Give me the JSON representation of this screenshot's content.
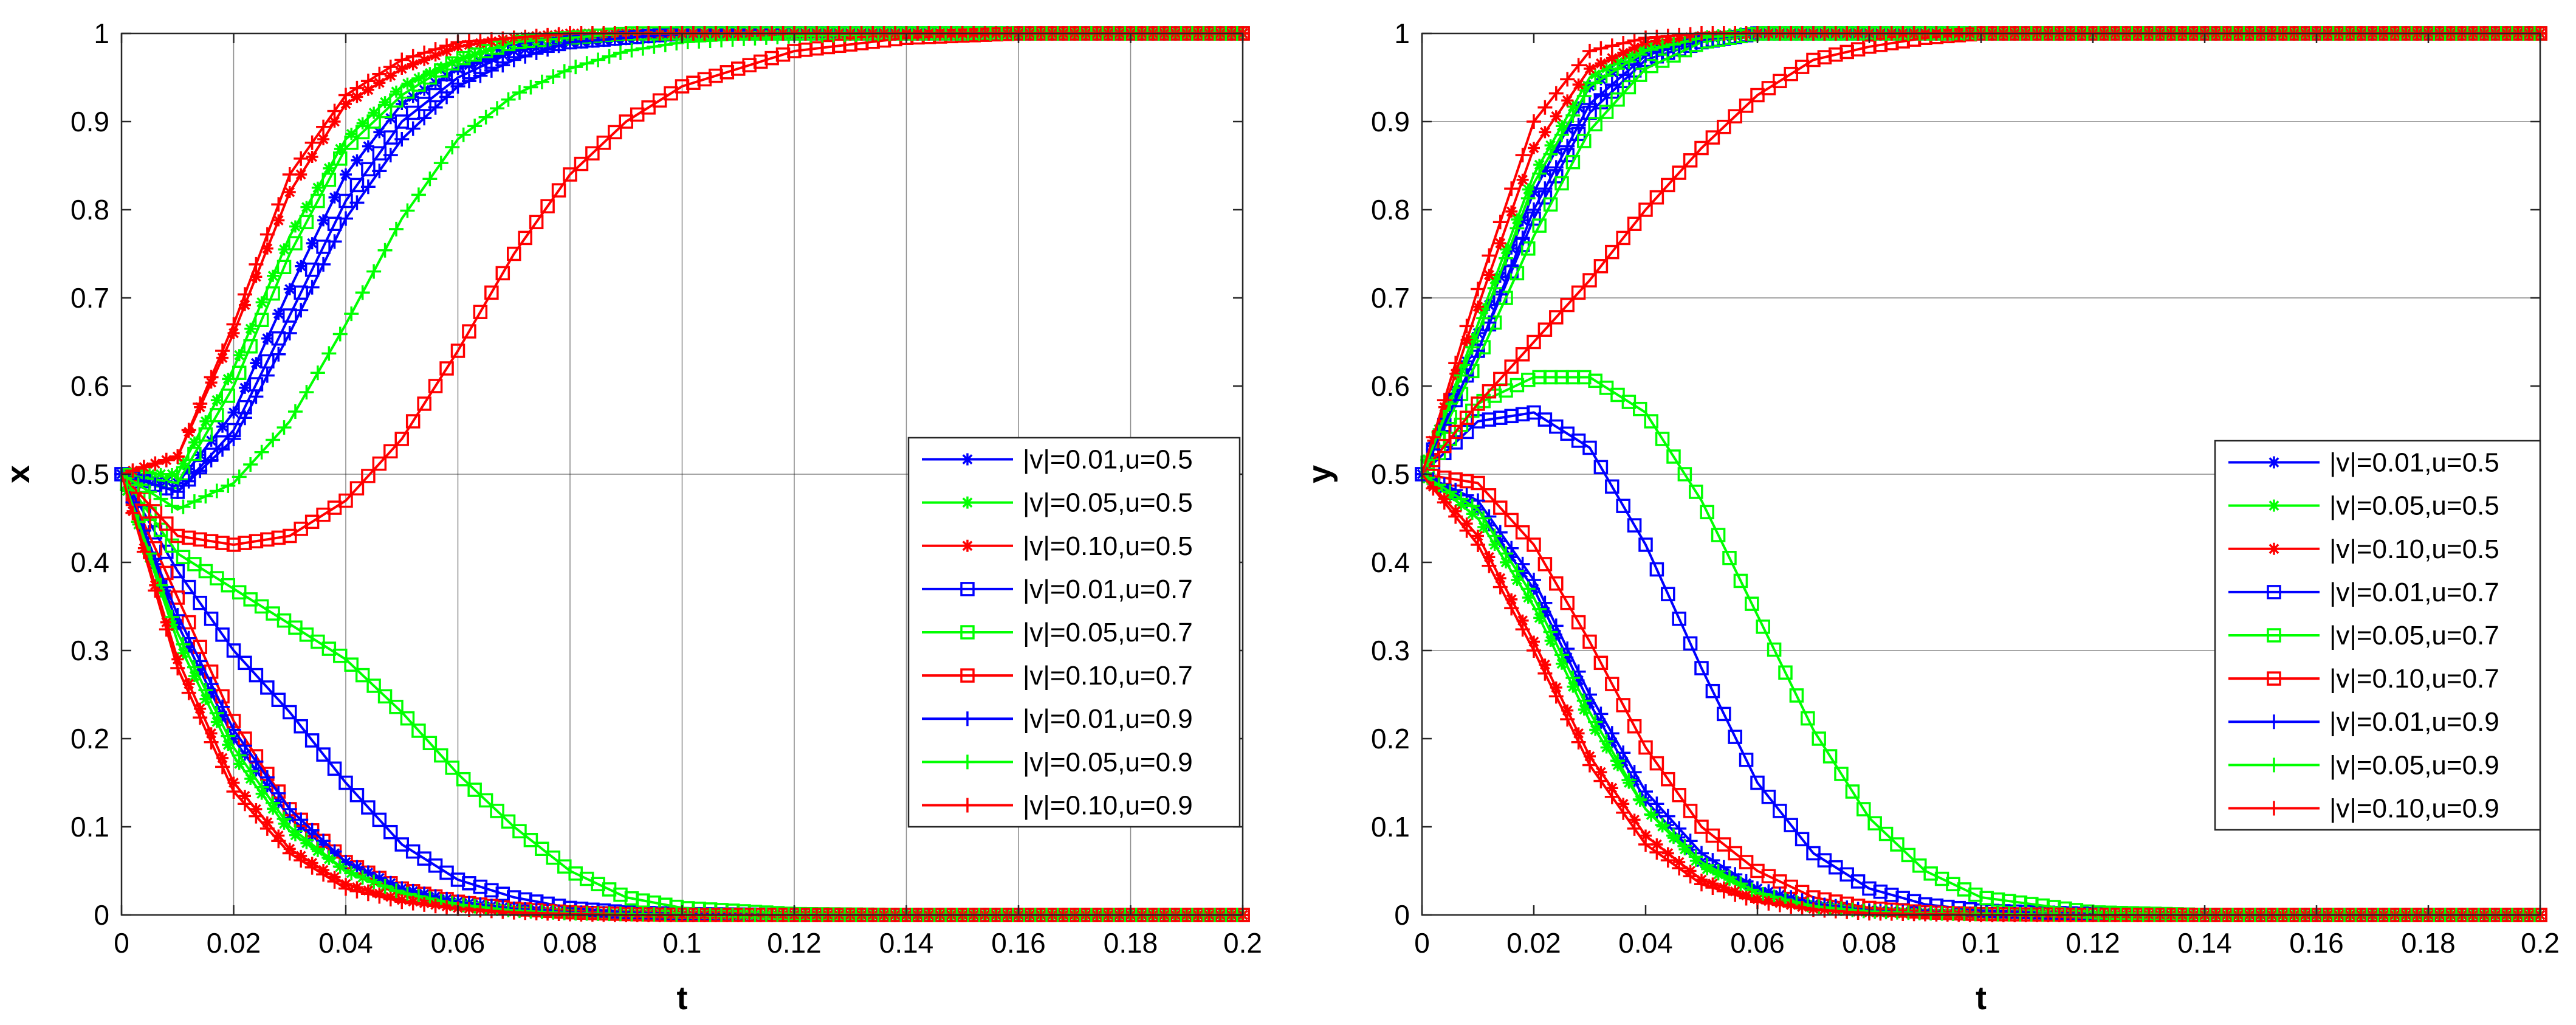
{
  "chart_data": [
    {
      "type": "line",
      "panel": "left",
      "title": "",
      "xlabel": "t",
      "ylabel": "x",
      "xlim": [
        0,
        0.2
      ],
      "ylim": [
        0,
        1
      ],
      "xticks": [
        0,
        0.02,
        0.04,
        0.06,
        0.08,
        0.1,
        0.12,
        0.14,
        0.16,
        0.18,
        0.2
      ],
      "xtick_labels": [
        "0",
        "0.02",
        "0.04",
        "0.06",
        "0.08",
        "0.1",
        "0.12",
        "0.14",
        "0.16",
        "0.18",
        "0.2"
      ],
      "yticks": [
        0,
        0.1,
        0.2,
        0.3,
        0.4,
        0.5,
        0.6,
        0.7,
        0.8,
        0.9,
        1
      ],
      "ytick_labels": [
        "0",
        "0.1",
        "0.2",
        "0.3",
        "0.4",
        "0.5",
        "0.6",
        "0.7",
        "0.8",
        "0.9",
        "1"
      ],
      "grid": {
        "x": true,
        "y": [
          0.5,
          1.0
        ]
      },
      "legend_position": "middle-right",
      "x": [
        0,
        0.01,
        0.02,
        0.03,
        0.04,
        0.05,
        0.06,
        0.07,
        0.08,
        0.09,
        0.1,
        0.12,
        0.14,
        0.16,
        0.18,
        0.2
      ],
      "series": [
        {
          "name": "|v|=0.01,u=0.5",
          "color": "#0000ff",
          "marker": "asterisk",
          "upper": [
            0.5,
            0.49,
            0.57,
            0.71,
            0.84,
            0.92,
            0.96,
            0.98,
            0.99,
            0.995,
            1,
            1,
            1,
            1,
            1,
            1
          ],
          "lower": [
            0.5,
            0.33,
            0.2,
            0.11,
            0.06,
            0.03,
            0.015,
            0.007,
            0.003,
            0.001,
            0,
            0,
            0,
            0,
            0,
            0
          ]
        },
        {
          "name": "|v|=0.05,u=0.5",
          "color": "#00ff00",
          "marker": "asterisk",
          "upper": [
            0.5,
            0.5,
            0.62,
            0.77,
            0.88,
            0.94,
            0.97,
            0.99,
            0.995,
            1,
            1,
            1,
            1,
            1,
            1,
            1
          ],
          "lower": [
            0.5,
            0.31,
            0.18,
            0.095,
            0.05,
            0.025,
            0.012,
            0.005,
            0.002,
            0.001,
            0,
            0,
            0,
            0,
            0,
            0
          ]
        },
        {
          "name": "|v|=0.10,u=0.5",
          "color": "#ff0000",
          "marker": "asterisk",
          "upper": [
            0.5,
            0.52,
            0.66,
            0.82,
            0.92,
            0.96,
            0.985,
            0.995,
            1,
            1,
            1,
            1,
            1,
            1,
            1,
            1
          ],
          "lower": [
            0.5,
            0.29,
            0.15,
            0.075,
            0.035,
            0.017,
            0.008,
            0.004,
            0.002,
            0,
            0,
            0,
            0,
            0,
            0,
            0
          ]
        },
        {
          "name": "|v|=0.01,u=0.7",
          "color": "#0000ff",
          "marker": "square",
          "upper": [
            0.5,
            0.48,
            0.55,
            0.68,
            0.81,
            0.9,
            0.95,
            0.98,
            0.99,
            0.995,
            1,
            1,
            1,
            1,
            1,
            1
          ],
          "lower": [
            0.5,
            0.39,
            0.3,
            0.23,
            0.15,
            0.08,
            0.04,
            0.02,
            0.008,
            0.003,
            0.001,
            0,
            0,
            0,
            0,
            0
          ]
        },
        {
          "name": "|v|=0.05,u=0.7",
          "color": "#00ff00",
          "marker": "square",
          "upper": [
            0.5,
            0.49,
            0.6,
            0.75,
            0.87,
            0.93,
            0.97,
            0.99,
            0.995,
            1,
            1,
            1,
            1,
            1,
            1,
            1
          ],
          "lower": [
            0.5,
            0.41,
            0.37,
            0.33,
            0.29,
            0.23,
            0.16,
            0.1,
            0.05,
            0.02,
            0.008,
            0.001,
            0,
            0,
            0,
            0
          ]
        },
        {
          "name": "|v|=0.10,u=0.7",
          "color": "#ff0000",
          "marker": "square",
          "upper": [
            0.5,
            0.43,
            0.42,
            0.43,
            0.47,
            0.54,
            0.64,
            0.75,
            0.84,
            0.9,
            0.94,
            0.98,
            0.995,
            1,
            1,
            1
          ],
          "lower": [
            0.5,
            0.36,
            0.22,
            0.12,
            0.06,
            0.03,
            0.015,
            0.007,
            0.003,
            0.001,
            0,
            0,
            0,
            0,
            0,
            0
          ]
        },
        {
          "name": "|v|=0.01,u=0.9",
          "color": "#0000ff",
          "marker": "plus",
          "upper": [
            0.5,
            0.48,
            0.54,
            0.66,
            0.79,
            0.88,
            0.94,
            0.97,
            0.99,
            0.995,
            1,
            1,
            1,
            1,
            1,
            1
          ],
          "lower": [
            0.5,
            0.34,
            0.21,
            0.12,
            0.06,
            0.03,
            0.015,
            0.007,
            0.003,
            0.001,
            0,
            0,
            0,
            0,
            0,
            0
          ]
        },
        {
          "name": "|v|=0.05,u=0.9",
          "color": "#00ff00",
          "marker": "plus",
          "upper": [
            0.5,
            0.46,
            0.49,
            0.56,
            0.67,
            0.79,
            0.88,
            0.93,
            0.96,
            0.98,
            0.99,
            0.997,
            1,
            1,
            1,
            1
          ],
          "lower": [
            0.5,
            0.32,
            0.19,
            0.1,
            0.05,
            0.025,
            0.012,
            0.005,
            0.002,
            0.001,
            0,
            0,
            0,
            0,
            0,
            0
          ]
        },
        {
          "name": "|v|=0.10,u=0.9",
          "color": "#ff0000",
          "marker": "plus",
          "upper": [
            0.5,
            0.52,
            0.67,
            0.84,
            0.93,
            0.97,
            0.99,
            0.995,
            1,
            1,
            1,
            1,
            1,
            1,
            1,
            1
          ],
          "lower": [
            0.5,
            0.28,
            0.14,
            0.07,
            0.03,
            0.015,
            0.007,
            0.003,
            0.001,
            0,
            0,
            0,
            0,
            0,
            0,
            0
          ]
        }
      ]
    },
    {
      "type": "line",
      "panel": "right",
      "title": "",
      "xlabel": "t",
      "ylabel": "y",
      "xlim": [
        0,
        0.2
      ],
      "ylim": [
        0,
        1
      ],
      "xticks": [
        0,
        0.02,
        0.04,
        0.06,
        0.08,
        0.1,
        0.12,
        0.14,
        0.16,
        0.18,
        0.2
      ],
      "xtick_labels": [
        "0",
        "0.02",
        "0.04",
        "0.06",
        "0.08",
        "0.1",
        "0.12",
        "0.14",
        "0.16",
        "0.18",
        "0.2"
      ],
      "yticks": [
        0,
        0.1,
        0.2,
        0.3,
        0.4,
        0.5,
        0.6,
        0.7,
        0.8,
        0.9,
        1
      ],
      "ytick_labels": [
        "0",
        "0.1",
        "0.2",
        "0.3",
        "0.4",
        "0.5",
        "0.6",
        "0.7",
        "0.8",
        "0.9",
        "1"
      ],
      "grid": {
        "x": false,
        "y": [
          0.3,
          0.5,
          0.7,
          0.9
        ]
      },
      "legend_position": "middle-right",
      "x": [
        0,
        0.01,
        0.02,
        0.03,
        0.04,
        0.05,
        0.06,
        0.07,
        0.08,
        0.09,
        0.1,
        0.12,
        0.14,
        0.16,
        0.18,
        0.2
      ],
      "series": [
        {
          "name": "|v|=0.01,u=0.5",
          "color": "#0000ff",
          "marker": "asterisk",
          "upper": [
            0.5,
            0.66,
            0.82,
            0.94,
            0.98,
            0.995,
            1,
            1,
            1,
            1,
            1,
            1,
            1,
            1,
            1,
            1
          ],
          "lower": [
            0.5,
            0.46,
            0.37,
            0.24,
            0.13,
            0.06,
            0.03,
            0.012,
            0.005,
            0.002,
            0.001,
            0,
            0,
            0,
            0,
            0
          ]
        },
        {
          "name": "|v|=0.05,u=0.5",
          "color": "#00ff00",
          "marker": "asterisk",
          "upper": [
            0.5,
            0.67,
            0.84,
            0.95,
            0.985,
            0.996,
            1,
            1,
            1,
            1,
            1,
            1,
            1,
            1,
            1,
            1
          ],
          "lower": [
            0.5,
            0.45,
            0.35,
            0.22,
            0.12,
            0.055,
            0.025,
            0.01,
            0.004,
            0.002,
            0.001,
            0,
            0,
            0,
            0,
            0
          ]
        },
        {
          "name": "|v|=0.10,u=0.5",
          "color": "#ff0000",
          "marker": "asterisk",
          "upper": [
            0.5,
            0.69,
            0.87,
            0.96,
            0.99,
            0.997,
            1,
            1,
            1,
            1,
            1,
            1,
            1,
            1,
            1,
            1
          ],
          "lower": [
            0.5,
            0.43,
            0.31,
            0.18,
            0.09,
            0.04,
            0.018,
            0.007,
            0.003,
            0.001,
            0,
            0,
            0,
            0,
            0,
            0
          ]
        },
        {
          "name": "|v|=0.01,u=0.7",
          "color": "#0000ff",
          "marker": "square",
          "upper": [
            0.5,
            0.64,
            0.79,
            0.91,
            0.97,
            0.99,
            1,
            1,
            1,
            1,
            1,
            1,
            1,
            1,
            1,
            1
          ],
          "lower": [
            0.5,
            0.56,
            0.57,
            0.53,
            0.42,
            0.28,
            0.15,
            0.07,
            0.03,
            0.012,
            0.005,
            0.001,
            0,
            0,
            0,
            0
          ]
        },
        {
          "name": "|v|=0.05,u=0.7",
          "color": "#00ff00",
          "marker": "square",
          "upper": [
            0.5,
            0.63,
            0.77,
            0.89,
            0.96,
            0.99,
            1,
            1,
            1,
            1,
            1,
            1,
            1,
            1,
            1,
            1
          ],
          "lower": [
            0.5,
            0.58,
            0.61,
            0.61,
            0.57,
            0.47,
            0.34,
            0.21,
            0.11,
            0.05,
            0.02,
            0.003,
            0,
            0,
            0,
            0
          ]
        },
        {
          "name": "|v|=0.10,u=0.7",
          "color": "#ff0000",
          "marker": "square",
          "upper": [
            0.5,
            0.58,
            0.65,
            0.72,
            0.8,
            0.87,
            0.93,
            0.97,
            0.985,
            0.995,
            1,
            1,
            1,
            1,
            1,
            1
          ],
          "lower": [
            0.5,
            0.49,
            0.42,
            0.31,
            0.19,
            0.1,
            0.05,
            0.02,
            0.008,
            0.003,
            0.001,
            0,
            0,
            0,
            0,
            0
          ]
        },
        {
          "name": "|v|=0.01,u=0.9",
          "color": "#0000ff",
          "marker": "plus",
          "upper": [
            0.5,
            0.64,
            0.8,
            0.92,
            0.975,
            0.993,
            1,
            1,
            1,
            1,
            1,
            1,
            1,
            1,
            1,
            1
          ],
          "lower": [
            0.5,
            0.47,
            0.38,
            0.25,
            0.14,
            0.07,
            0.03,
            0.013,
            0.005,
            0.002,
            0.001,
            0,
            0,
            0,
            0,
            0
          ]
        },
        {
          "name": "|v|=0.05,u=0.9",
          "color": "#00ff00",
          "marker": "plus",
          "upper": [
            0.5,
            0.66,
            0.83,
            0.94,
            0.98,
            0.995,
            1,
            1,
            1,
            1,
            1,
            1,
            1,
            1,
            1,
            1
          ],
          "lower": [
            0.5,
            0.46,
            0.36,
            0.23,
            0.12,
            0.06,
            0.025,
            0.01,
            0.004,
            0.002,
            0.001,
            0,
            0,
            0,
            0,
            0
          ]
        },
        {
          "name": "|v|=0.10,u=0.9",
          "color": "#ff0000",
          "marker": "plus",
          "upper": [
            0.5,
            0.71,
            0.9,
            0.98,
            0.995,
            1,
            1,
            1,
            1,
            1,
            1,
            1,
            1,
            1,
            1,
            1
          ],
          "lower": [
            0.5,
            0.42,
            0.3,
            0.17,
            0.08,
            0.035,
            0.015,
            0.006,
            0.002,
            0.001,
            0,
            0,
            0,
            0,
            0,
            0
          ]
        }
      ]
    }
  ]
}
